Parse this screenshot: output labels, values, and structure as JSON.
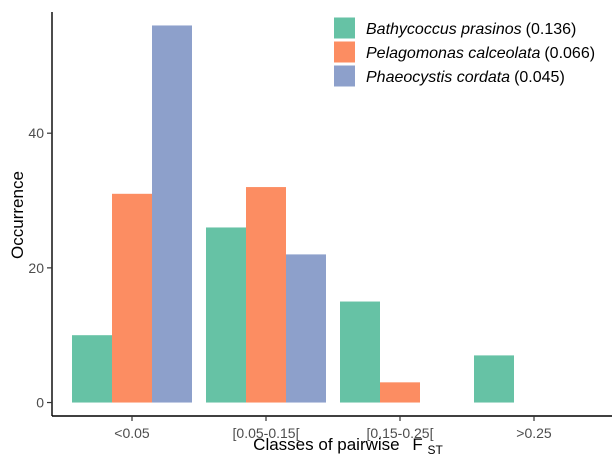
{
  "chart_data": {
    "type": "bar",
    "xlabel": "Classes of pairwise",
    "xlabel_symbol": "F",
    "xlabel_subscript": "ST",
    "ylabel": "Occurrence",
    "categories": [
      "<0.05",
      "[0.05-0.15[",
      "[0.15-0.25[",
      ">0.25"
    ],
    "ylim": [
      -2,
      58
    ],
    "yticks": [
      0,
      20,
      40
    ],
    "grid": false,
    "legend_position": "top-right",
    "series": [
      {
        "name": "Bathycoccus prasinos",
        "name_suffix": "(0.136)",
        "color": "#66c2a5",
        "values": [
          10,
          26,
          15,
          7
        ]
      },
      {
        "name": "Pelagomonas calceolata",
        "name_suffix": "(0.066)",
        "color": "#fc8d62",
        "values": [
          31,
          32,
          3,
          0
        ]
      },
      {
        "name": "Phaeocystis cordata",
        "name_suffix": "(0.045)",
        "color": "#8da0cb",
        "values": [
          56,
          22,
          0,
          0
        ]
      }
    ]
  }
}
